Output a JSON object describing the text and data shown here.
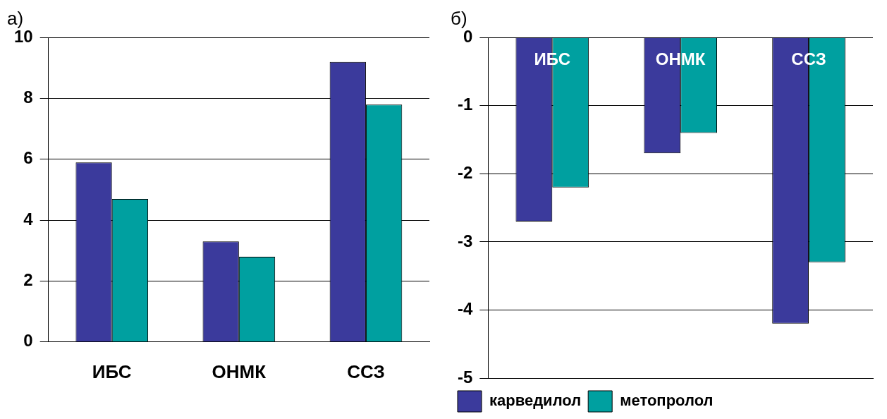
{
  "chart_data": [
    {
      "type": "bar",
      "title": "а)",
      "categories": [
        "ИБС",
        "ОНМК",
        "ССЗ"
      ],
      "series": [
        {
          "color": "#3b3a9c",
          "values": [
            5.9,
            3.3,
            9.2
          ]
        },
        {
          "color": "#00a0a0",
          "values": [
            4.7,
            2.8,
            7.8
          ]
        }
      ],
      "ylim": [
        0,
        10
      ],
      "yticks": [
        0,
        2,
        4,
        6,
        8,
        10
      ],
      "grid": "y",
      "legend": false
    },
    {
      "type": "bar",
      "title": "б)",
      "categories": [
        "ИБС",
        "ОНМК",
        "ССЗ"
      ],
      "series": [
        {
          "name": "карведилол",
          "color": "#3b3a9c",
          "values": [
            -2.7,
            -1.7,
            -4.2
          ]
        },
        {
          "name": "метопролол",
          "color": "#00a0a0",
          "values": [
            -2.2,
            -1.4,
            -3.3
          ]
        }
      ],
      "ylim": [
        -5,
        0
      ],
      "yticks": [
        -5,
        -4,
        -3,
        -2,
        -1,
        0
      ],
      "grid": "y",
      "legend": "bottom"
    }
  ]
}
